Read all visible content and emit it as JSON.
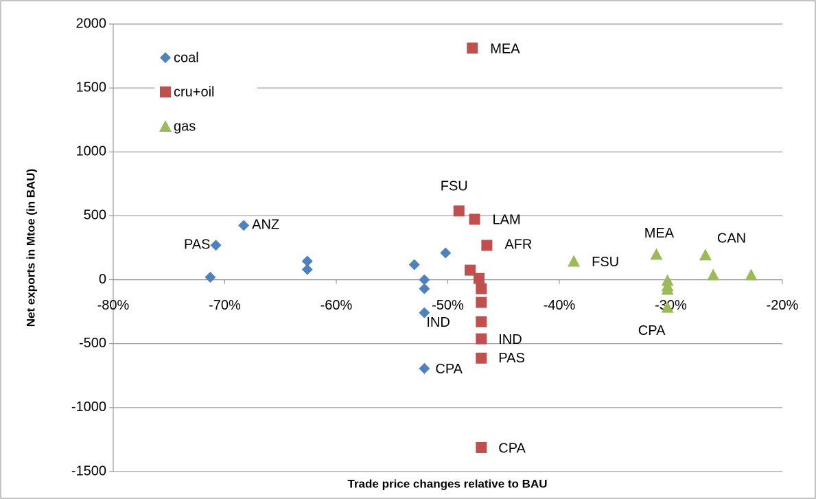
{
  "chart_data": {
    "type": "scatter",
    "x_label": "Trade price changes relative to BAU",
    "y_label": "Net exports in Mtoe (in BAU)",
    "xlim": [
      -80,
      -20
    ],
    "xticks": [
      {
        "value": -80,
        "label": "-80%"
      },
      {
        "value": -70,
        "label": "-70%"
      },
      {
        "value": -60,
        "label": "-60%"
      },
      {
        "value": -50,
        "label": "-50%"
      },
      {
        "value": -40,
        "label": "-40%"
      },
      {
        "value": -30,
        "label": "-30%"
      },
      {
        "value": -20,
        "label": "-20%"
      }
    ],
    "ylim": [
      -1500,
      2000
    ],
    "yticks": [
      -1500,
      -1000,
      -500,
      0,
      500,
      1000,
      1500,
      2000
    ],
    "grid": true,
    "legend": "upper left",
    "series": [
      {
        "name": "coal",
        "color": "#4f81bd",
        "marker": "diamond",
        "x": [
          -71.3,
          -70.8,
          -68.3,
          -62.6,
          -62.6,
          -53.0,
          -52.1,
          -52.1,
          -50.2,
          -52.1,
          -52.1
        ],
        "values": [
          20,
          270,
          425,
          145,
          80,
          118,
          0,
          -70,
          210,
          -258,
          -694
        ],
        "labels": [
          null,
          "PAS",
          "ANZ",
          null,
          null,
          null,
          null,
          null,
          null,
          "IND",
          "CPA"
        ]
      },
      {
        "name": "cru+oil",
        "color": "#c0504d",
        "marker": "square",
        "x": [
          -47.8,
          -49.0,
          -47.6,
          -46.5,
          -48.0,
          -47.2,
          -47.0,
          -47.0,
          -47.0,
          -47.0,
          -47.0,
          -47.0
        ],
        "values": [
          1812,
          538,
          473,
          269,
          75,
          10,
          -70,
          -177,
          -328,
          -462,
          -613,
          -1312
        ],
        "labels": [
          "MEA",
          "FSU",
          "LAM",
          "AFR",
          null,
          null,
          null,
          null,
          null,
          "IND",
          "PAS",
          "CPA"
        ]
      },
      {
        "name": "gas",
        "color": "#9bbb59",
        "marker": "triangle",
        "x": [
          -38.7,
          -31.3,
          -26.9,
          -26.2,
          -22.8,
          -30.3,
          -30.3,
          -30.3,
          -30.3
        ],
        "values": [
          145,
          199,
          194,
          38,
          38,
          -5,
          -48,
          -75,
          -215
        ],
        "labels": [
          "FSU",
          "MEA",
          "CAN",
          null,
          null,
          null,
          null,
          null,
          "CPA"
        ]
      }
    ]
  }
}
